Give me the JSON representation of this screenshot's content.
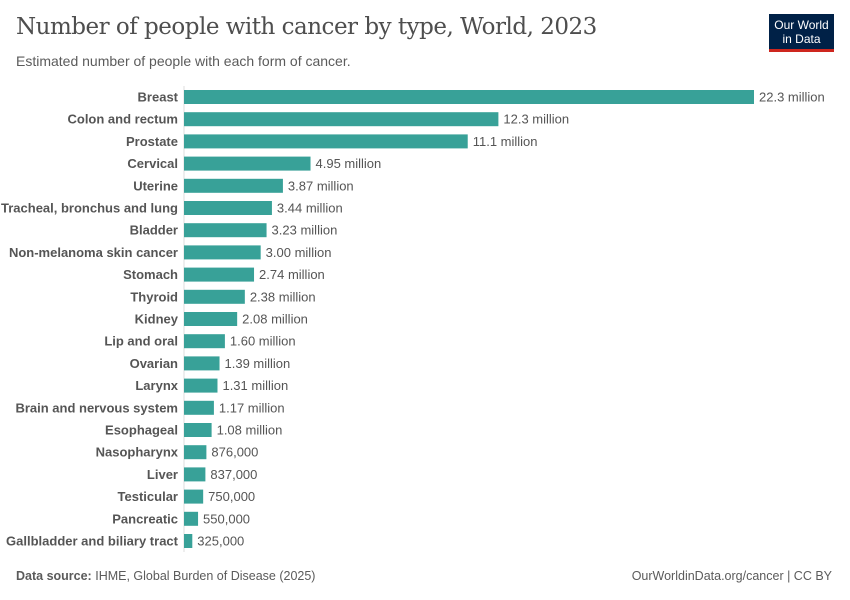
{
  "header": {
    "title": "Number of people with cancer by type, World, 2023",
    "subtitle": "Estimated number of people with each form of cancer.",
    "logo": "Our World in Data"
  },
  "footer": {
    "source_label": "Data source:",
    "source": "IHME, Global Burden of Disease (2025)",
    "credit": "OurWorldinData.org/cancer | CC BY"
  },
  "colors": {
    "bar": "#38a198"
  },
  "chart_data": {
    "type": "bar",
    "orientation": "horizontal",
    "title": "Number of people with cancer by type, World, 2023",
    "subtitle": "Estimated number of people with each form of cancer.",
    "categories": [
      "Breast",
      "Colon and rectum",
      "Prostate",
      "Cervical",
      "Uterine",
      "Tracheal, bronchus and lung",
      "Bladder",
      "Non-melanoma skin cancer",
      "Stomach",
      "Thyroid",
      "Kidney",
      "Lip and oral",
      "Ovarian",
      "Larynx",
      "Brain and nervous system",
      "Esophageal",
      "Nasopharynx",
      "Liver",
      "Testicular",
      "Pancreatic",
      "Gallbladder and biliary tract"
    ],
    "values": [
      22300000,
      12300000,
      11100000,
      4950000,
      3870000,
      3440000,
      3230000,
      3000000,
      2740000,
      2380000,
      2080000,
      1600000,
      1390000,
      1310000,
      1170000,
      1080000,
      876000,
      837000,
      750000,
      550000,
      325000
    ],
    "labels": [
      "22.3 million",
      "12.3 million",
      "11.1 million",
      "4.95 million",
      "3.87 million",
      "3.44 million",
      "3.23 million",
      "3.00 million",
      "2.74 million",
      "2.38 million",
      "2.08 million",
      "1.60 million",
      "1.39 million",
      "1.31 million",
      "1.17 million",
      "1.08 million",
      "876,000",
      "837,000",
      "750,000",
      "550,000",
      "325,000"
    ]
  }
}
